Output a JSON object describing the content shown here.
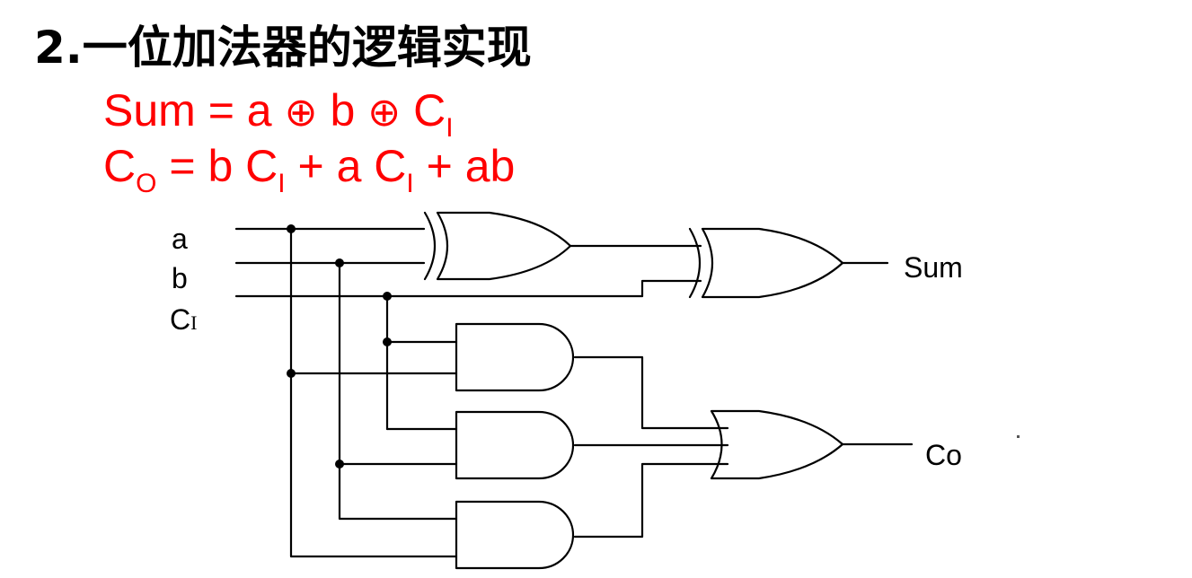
{
  "title": "2.一位加法器的逻辑实现",
  "formulas": {
    "sum": {
      "lhs": "Sum",
      "eq": " = ",
      "a": "a",
      "op": " ⊕ ",
      "b": "b",
      "c": "C",
      "c_sub": "I"
    },
    "carry": {
      "lhs": "C",
      "lhs_sub": "O",
      "eq": " = ",
      "t1a": "b C",
      "t1sub": "I",
      "plus": " + ",
      "t2a": "a C",
      "t2sub": "I",
      "t3": "ab"
    }
  },
  "signals": {
    "a": "a",
    "b": "b",
    "ci_main": "C",
    "ci_sub": "I",
    "sum": "Sum",
    "co": "Co"
  },
  "colors": {
    "formula": "#ff0000",
    "title": "#000000",
    "wire": "#000000"
  }
}
